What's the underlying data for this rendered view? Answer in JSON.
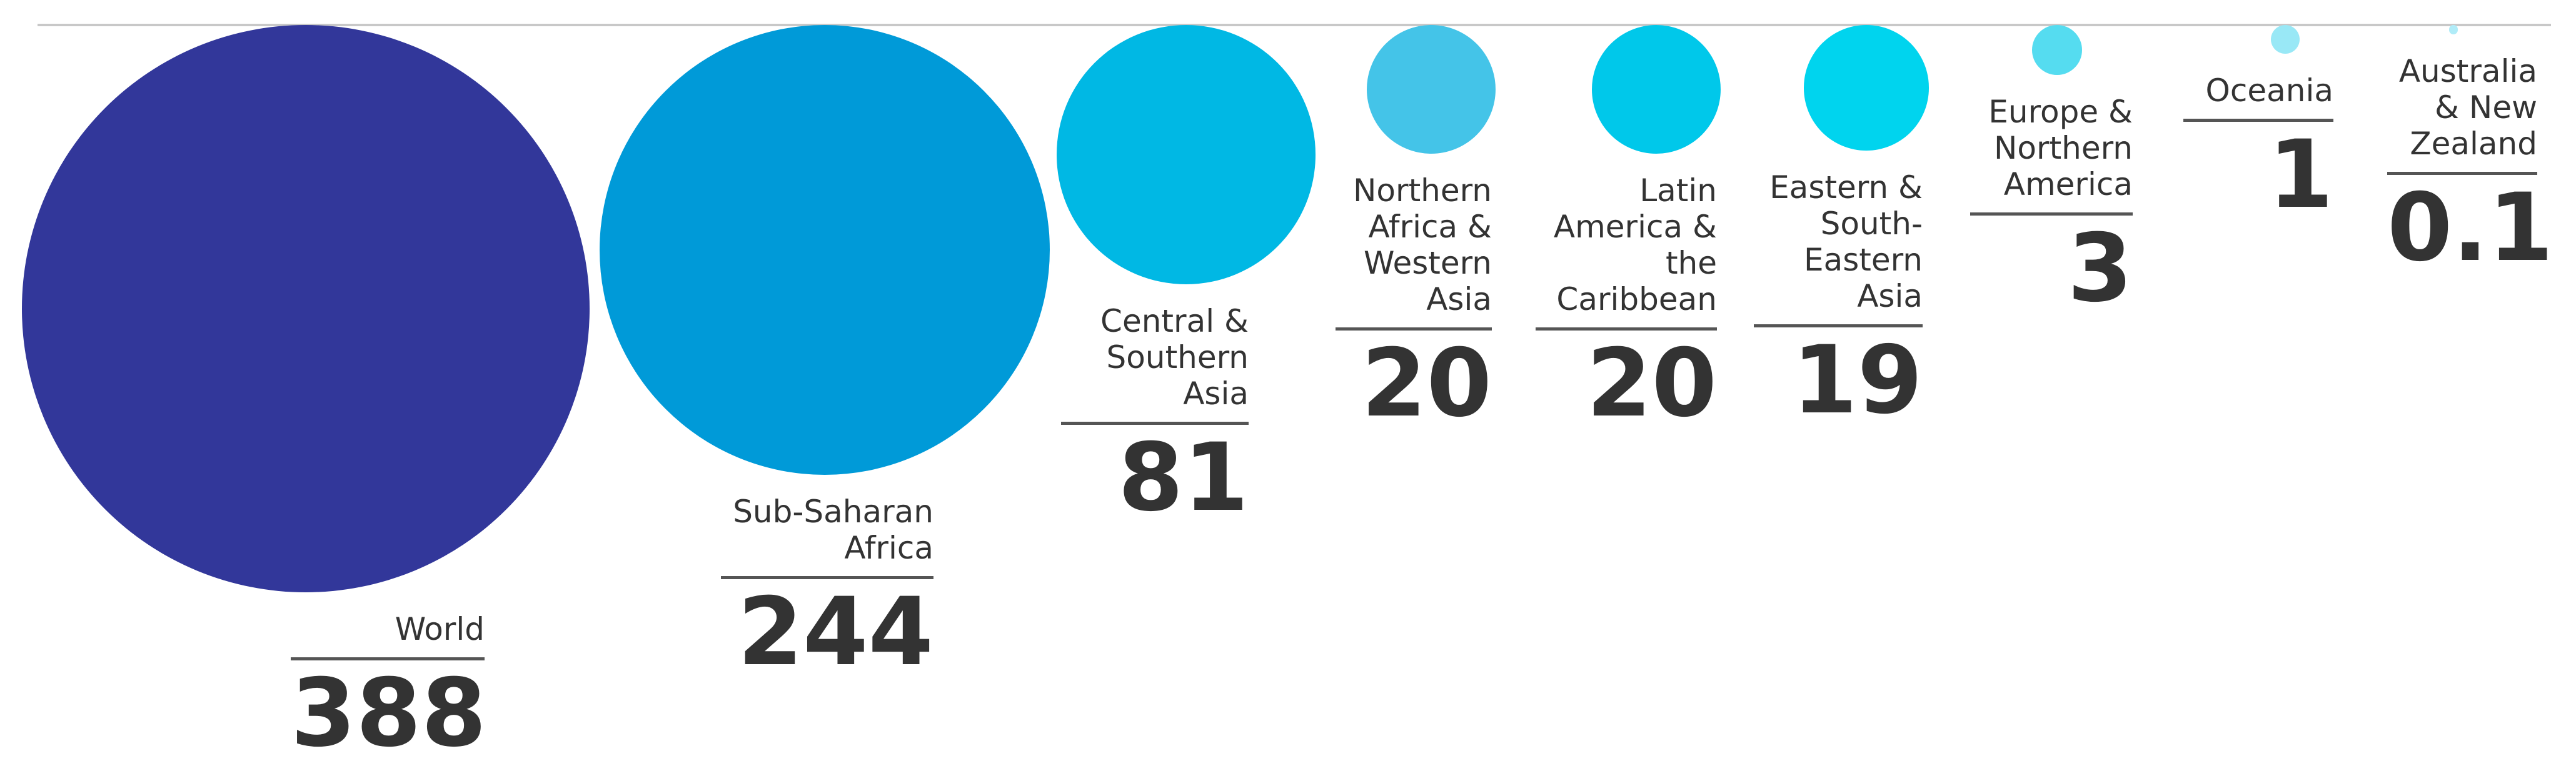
{
  "chart_data": {
    "type": "bubble",
    "categories": [
      "World",
      "Sub-Saharan Africa",
      "Central & Southern Asia",
      "Northern Africa & Western Asia",
      "Latin America & the Caribbean",
      "Eastern & South-Eastern Asia",
      "Europe & Northern America",
      "Oceania",
      "Australia & New Zealand"
    ],
    "values": [
      388,
      244,
      81,
      20,
      20,
      19,
      3,
      1,
      0.1
    ],
    "colors": [
      "#32379a",
      "#009ad8",
      "#00b8e4",
      "#44c4e8",
      "#00c8ea",
      "#00d4ee",
      "#55dcf0",
      "#99e8f6",
      "#b0ecf8"
    ]
  }
}
